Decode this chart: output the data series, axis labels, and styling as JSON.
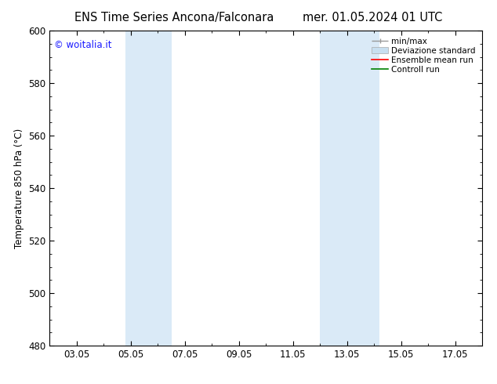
{
  "title_left": "ENS Time Series Ancona/Falconara",
  "title_right": "mer. 01.05.2024 01 UTC",
  "ylabel": "Temperature 850 hPa (°C)",
  "xlim": [
    1,
    17
  ],
  "ylim": [
    480,
    600
  ],
  "yticks": [
    480,
    500,
    520,
    540,
    560,
    580,
    600
  ],
  "xtick_labels": [
    "03.05",
    "05.05",
    "07.05",
    "09.05",
    "11.05",
    "13.05",
    "15.05",
    "17.05"
  ],
  "xtick_positions": [
    2,
    4,
    6,
    8,
    10,
    12,
    14,
    16
  ],
  "shaded_regions": [
    {
      "xmin": 3.8,
      "xmax": 5.5,
      "color": "#daeaf7"
    },
    {
      "xmin": 11.0,
      "xmax": 13.2,
      "color": "#daeaf7"
    }
  ],
  "legend_entries": [
    {
      "label": "min/max",
      "color_line": "#999999",
      "type": "minmax"
    },
    {
      "label": "Deviazione standard",
      "color_fill": "#c8dff0",
      "type": "fill"
    },
    {
      "label": "Ensemble mean run",
      "color": "#ff0000",
      "type": "line"
    },
    {
      "label": "Controll run",
      "color": "#008000",
      "type": "line"
    }
  ],
  "watermark_text": "© woitalia.it",
  "watermark_color": "#1a1aff",
  "background_color": "#ffffff",
  "tick_label_size": 8.5,
  "title_fontsize": 10.5,
  "ylabel_fontsize": 8.5,
  "font_family": "DejaVu Sans"
}
